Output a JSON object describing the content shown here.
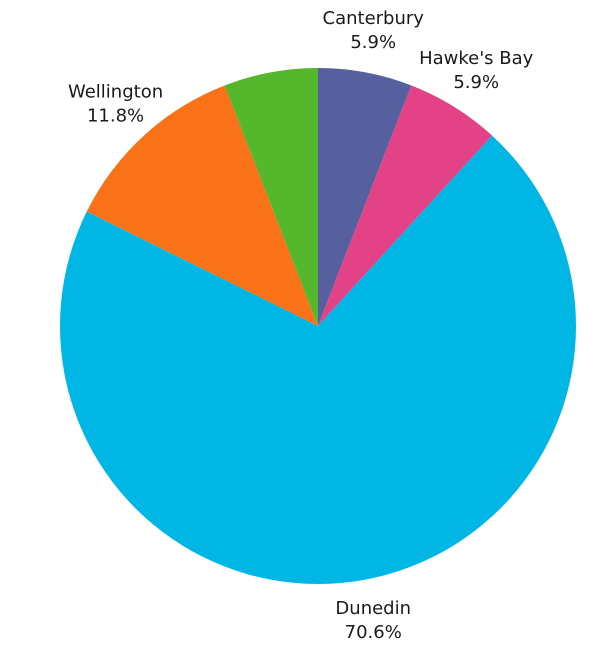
{
  "chart_data": {
    "type": "pie",
    "title": "",
    "start_angle_deg": 0,
    "direction": "clockwise",
    "slices": [
      {
        "label": "Canterbury",
        "value": 5.9,
        "value_label": "5.9%",
        "color": "#57609F"
      },
      {
        "label": "Hawke's Bay",
        "value": 5.9,
        "value_label": "5.9%",
        "color": "#E34287"
      },
      {
        "label": "Dunedin",
        "value": 70.6,
        "value_label": "70.6%",
        "color": "#00B6E5"
      },
      {
        "label": "Wellington",
        "value": 11.8,
        "value_label": "11.8%",
        "color": "#F97218"
      },
      {
        "label": "",
        "value": 5.9,
        "value_label": "",
        "color": "#55B72B"
      }
    ]
  }
}
